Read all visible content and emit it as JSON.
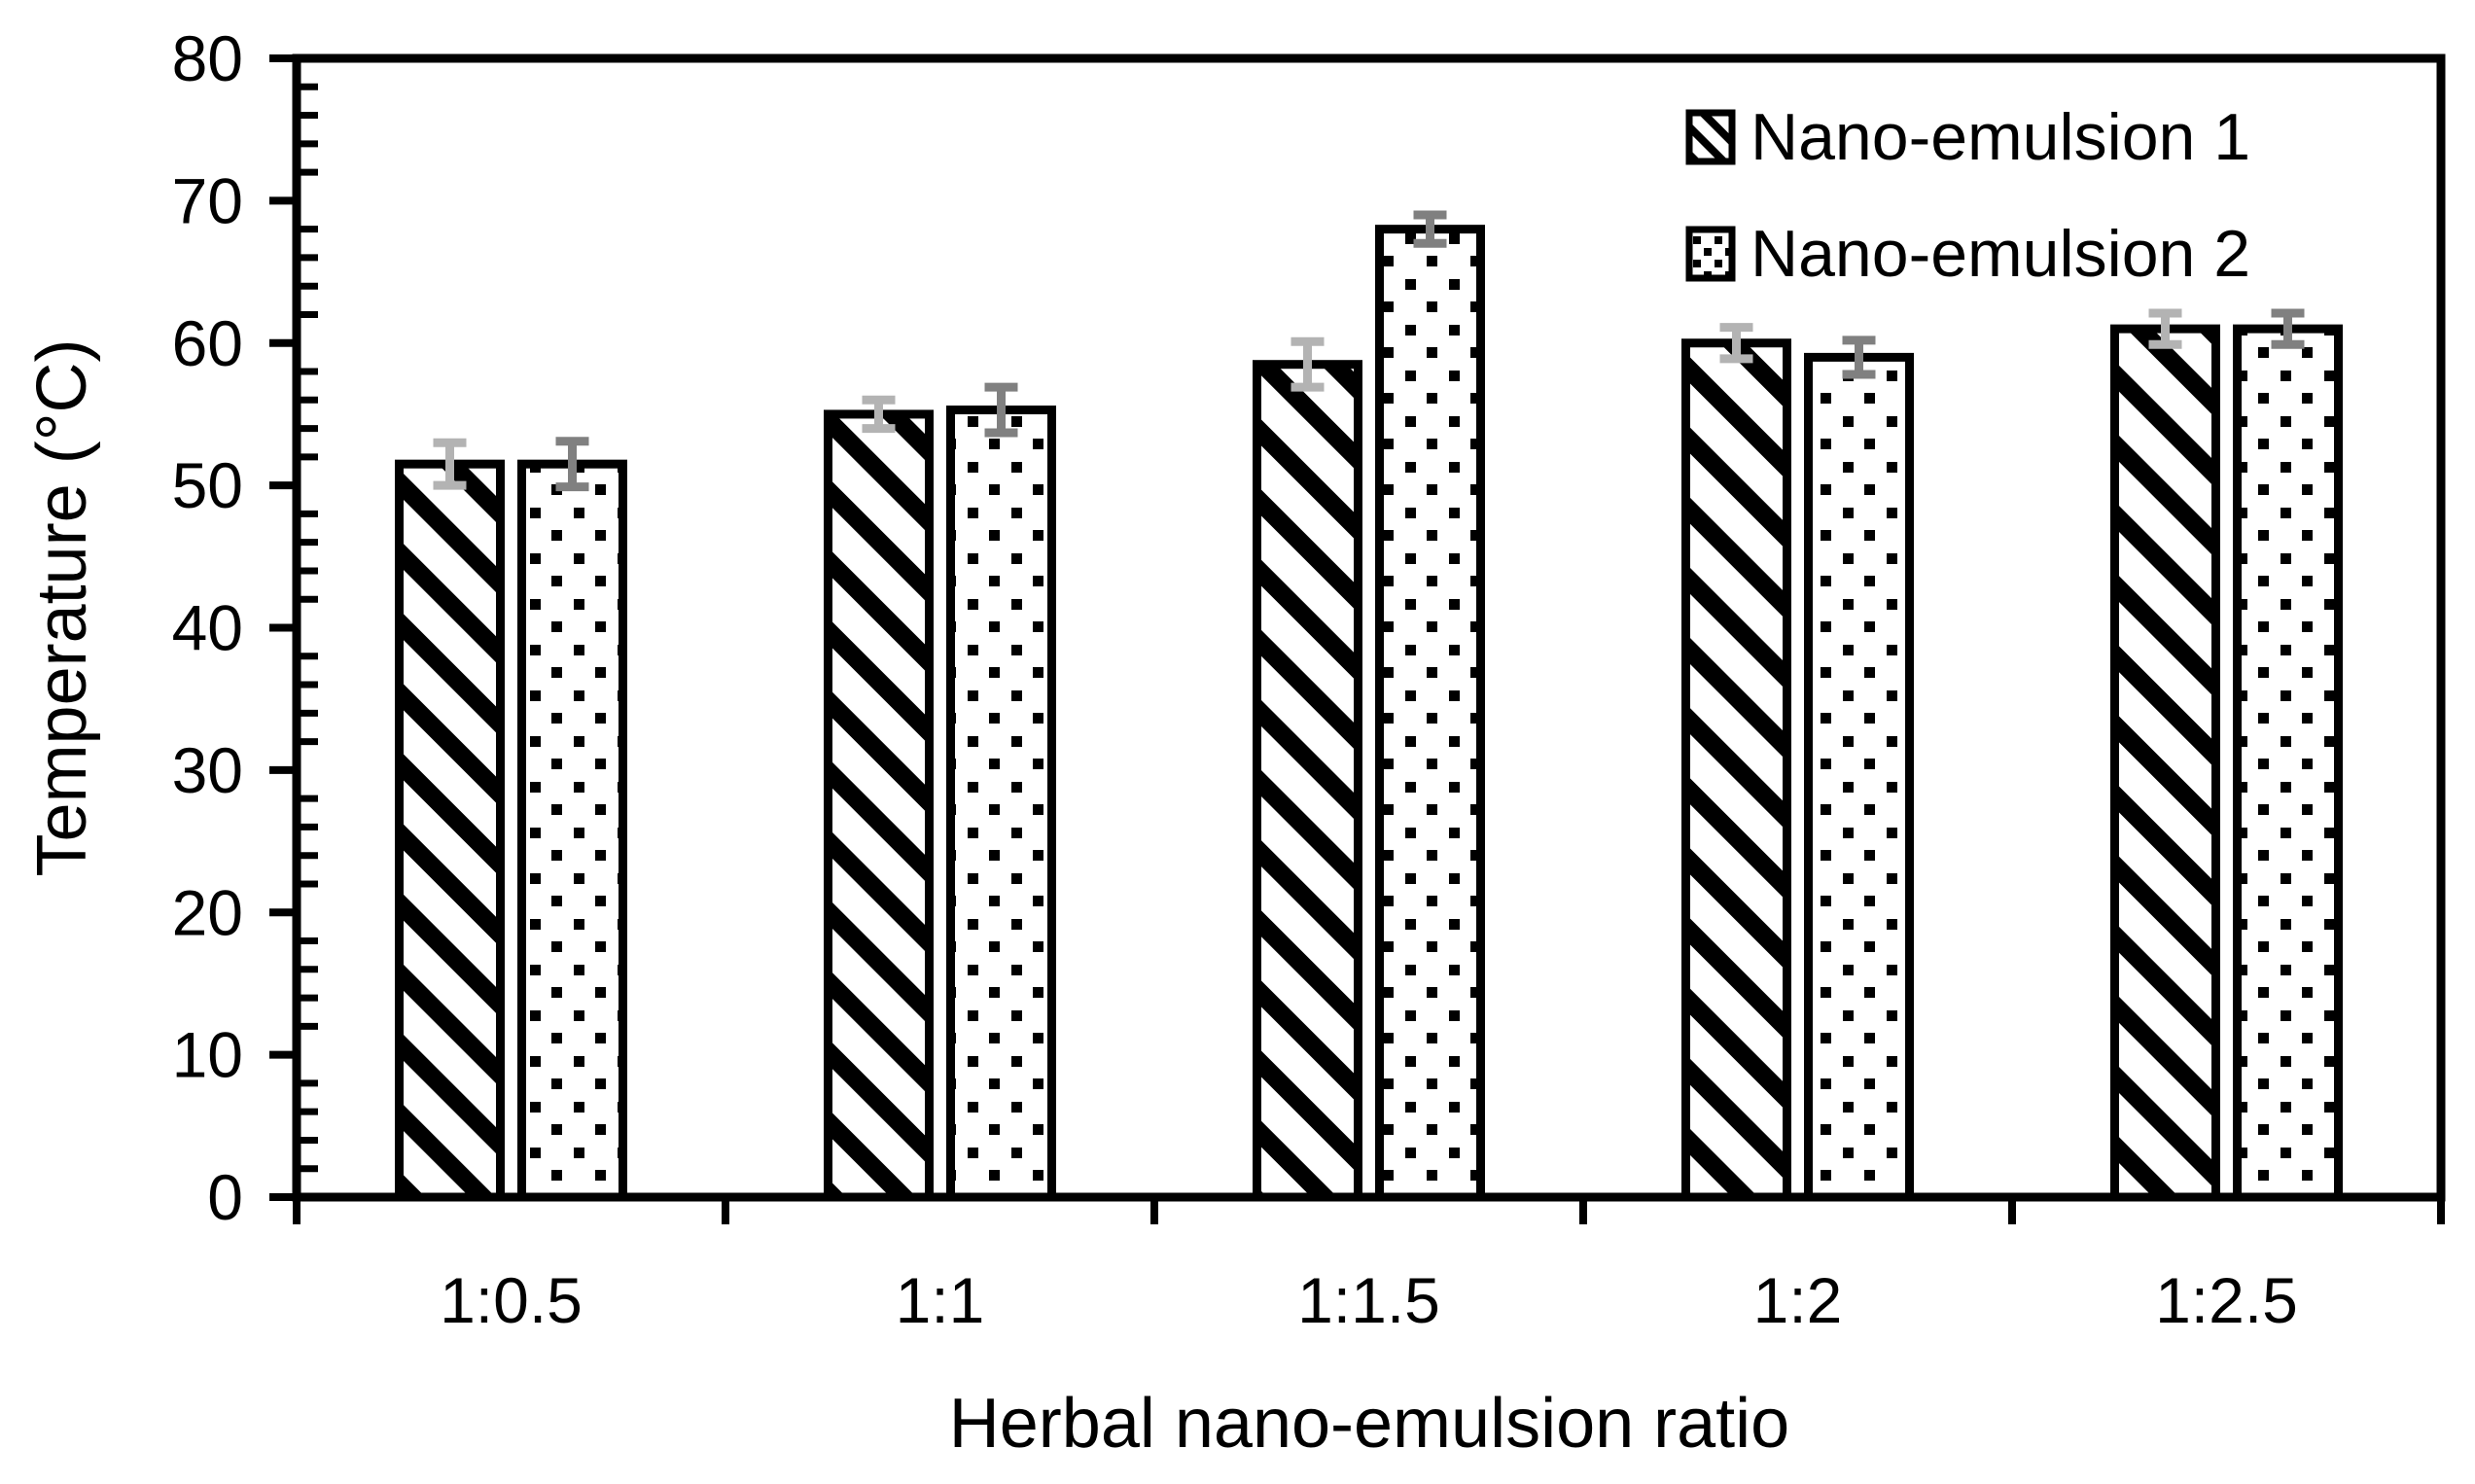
{
  "chart_data": {
    "type": "bar",
    "title": "",
    "xlabel": "Herbal nano-emulsion ratio",
    "ylabel": "Temperature (°C)",
    "categories": [
      "1:0.5",
      "1:1",
      "1:1.5",
      "1:2",
      "1:2.5"
    ],
    "series": [
      {
        "name": "Nano-emulsion 1",
        "values": [
          51.5,
          55,
          58.5,
          60,
          61
        ],
        "errors": [
          1.5,
          1.0,
          1.6,
          1.1,
          1.1
        ],
        "pattern": "diagonal-hatch",
        "fill": "#ffffff",
        "border": "#000000",
        "error_color": "#b3b3b3"
      },
      {
        "name": "Nano-emulsion 2",
        "values": [
          51.5,
          55.3,
          68,
          59,
          61
        ],
        "errors": [
          1.6,
          1.6,
          1.0,
          1.2,
          1.1
        ],
        "pattern": "dots",
        "fill": "#ffffff",
        "border": "#000000",
        "error_color": "#808080"
      }
    ],
    "ylim": [
      0,
      80
    ],
    "y_major_step": 10,
    "y_minor_step": 2,
    "y_tick_labels": [
      "0",
      "10",
      "20",
      "30",
      "40",
      "50",
      "60",
      "70",
      "80"
    ],
    "grid": false,
    "frame": "box",
    "axis_color": "#000000",
    "legend_position": "top-right-inside"
  }
}
